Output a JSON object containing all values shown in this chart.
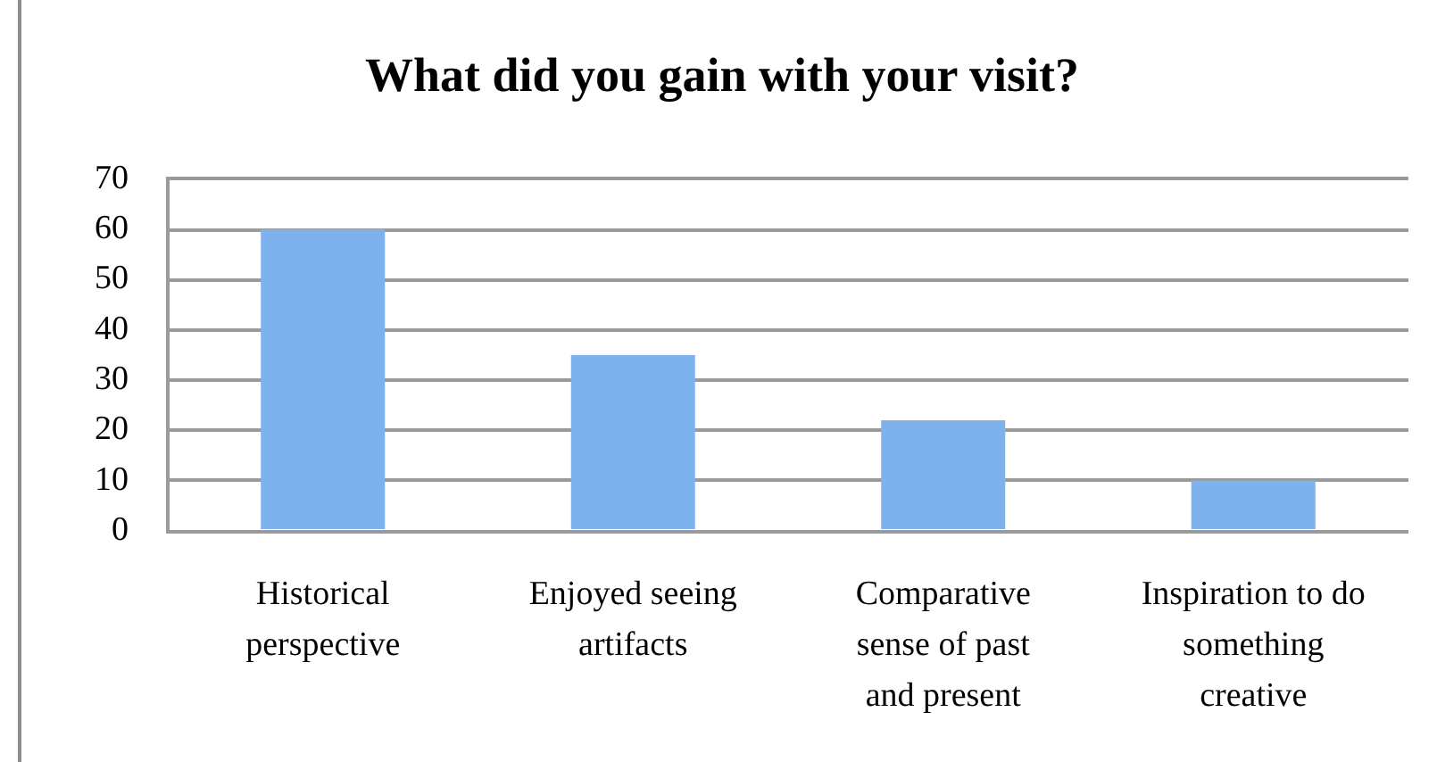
{
  "chart_data": {
    "type": "bar",
    "title": "What did you gain with your visit?",
    "categories": [
      "Historical perspective",
      "Enjoyed seeing artifacts",
      "Comparative sense of past and present",
      "Inspiration to do something creative"
    ],
    "values": [
      60,
      35,
      22,
      10
    ],
    "color": "#7db2ee",
    "ylim": [
      0,
      70
    ],
    "yticks": [
      0,
      10,
      20,
      30,
      40,
      50,
      60,
      70
    ],
    "grid": "y"
  }
}
